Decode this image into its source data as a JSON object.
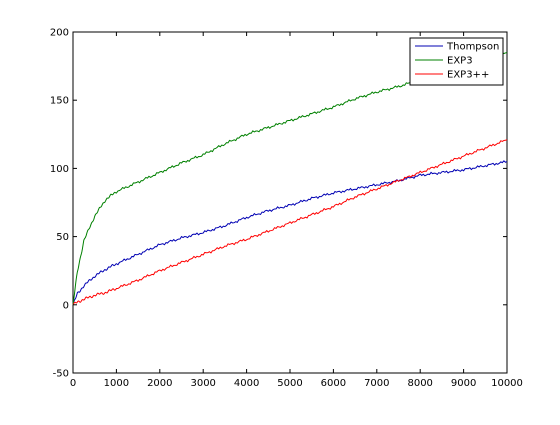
{
  "chart_data": {
    "type": "line",
    "title": "",
    "xlabel": "",
    "ylabel": "",
    "xlim": [
      0,
      10000
    ],
    "ylim": [
      -50,
      200
    ],
    "xticks": [
      0,
      1000,
      2000,
      3000,
      4000,
      5000,
      6000,
      7000,
      8000,
      9000,
      10000
    ],
    "yticks": [
      -50,
      0,
      50,
      100,
      150,
      200
    ],
    "xtick_labels": [
      "0",
      "1000",
      "2000",
      "3000",
      "4000",
      "5000",
      "6000",
      "7000",
      "8000",
      "9000",
      "10000"
    ],
    "ytick_labels": [
      "-50",
      "0",
      "50",
      "100",
      "150",
      "200"
    ],
    "grid": false,
    "legend_position": "top-right",
    "series": [
      {
        "name": "Thompson",
        "color": "#0000b3",
        "x": [
          0,
          100,
          250,
          500,
          750,
          1000,
          1500,
          2000,
          2500,
          3000,
          3500,
          4000,
          4500,
          5000,
          5500,
          6000,
          6500,
          7000,
          7500,
          8000,
          8500,
          9000,
          9500,
          10000
        ],
        "y": [
          0,
          8,
          14,
          21,
          26,
          30,
          37,
          44,
          49,
          53,
          58,
          64,
          69,
          73,
          78,
          82,
          85,
          88,
          91,
          95,
          97,
          99,
          102,
          105
        ]
      },
      {
        "name": "EXP3",
        "color": "#008000",
        "x": [
          0,
          100,
          250,
          500,
          750,
          1000,
          1500,
          2000,
          2500,
          3000,
          3500,
          4000,
          4500,
          5000,
          5500,
          6000,
          6500,
          7000,
          7500,
          8000,
          8500,
          9000,
          9500,
          10000
        ],
        "y": [
          0,
          24,
          47,
          65,
          77,
          83,
          90,
          97,
          104,
          110,
          118,
          125,
          130,
          135,
          140,
          145,
          151,
          156,
          160,
          165,
          170,
          175,
          180,
          185
        ]
      },
      {
        "name": "EXP3++",
        "color": "#ff0000",
        "x": [
          0,
          100,
          250,
          500,
          750,
          1000,
          1500,
          2000,
          2500,
          3000,
          3500,
          4000,
          4500,
          5000,
          5500,
          6000,
          6500,
          7000,
          7500,
          8000,
          8500,
          9000,
          9500,
          10000
        ],
        "y": [
          0,
          2,
          4,
          7,
          9,
          12,
          18,
          25,
          31,
          37,
          43,
          48,
          54,
          60,
          66,
          72,
          79,
          85,
          91,
          97,
          103,
          109,
          115,
          121
        ]
      }
    ]
  }
}
